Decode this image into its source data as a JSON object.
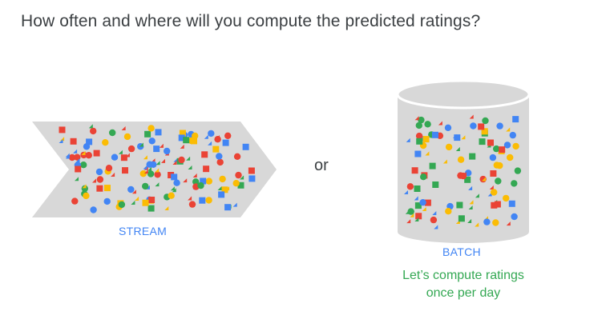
{
  "title": "How often and where will you compute the predicted ratings?",
  "stream": {
    "label": "STREAM"
  },
  "separator": "or",
  "batch": {
    "label": "BATCH",
    "caption_line1": "Let’s compute ratings",
    "caption_line2": "once per day"
  },
  "colors": {
    "red": "#ea4335",
    "blue": "#4285f4",
    "yellow": "#fbbc04",
    "green": "#34a853",
    "shape_fill": "#d8d8d8",
    "text": "#3c4043"
  }
}
